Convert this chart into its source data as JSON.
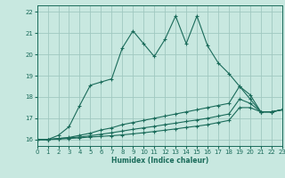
{
  "xlabel": "Humidex (Indice chaleur)",
  "bg_color": "#c8e8e0",
  "grid_color": "#a0c8c0",
  "line_color": "#1a6b5a",
  "xlim": [
    0,
    23
  ],
  "ylim": [
    15.7,
    22.3
  ],
  "xticks": [
    0,
    1,
    2,
    3,
    4,
    5,
    6,
    7,
    8,
    9,
    10,
    11,
    12,
    13,
    14,
    15,
    16,
    17,
    18,
    19,
    20,
    21,
    22,
    23
  ],
  "yticks": [
    16,
    17,
    18,
    19,
    20,
    21,
    22
  ],
  "line1_x": [
    0,
    1,
    2,
    3,
    4,
    5,
    6,
    7,
    8,
    9,
    10,
    11,
    12,
    13,
    14,
    15,
    16,
    17,
    18,
    19,
    20,
    21,
    22,
    23
  ],
  "line1_y": [
    16.0,
    16.0,
    16.2,
    16.6,
    17.6,
    18.55,
    18.7,
    18.85,
    20.3,
    21.1,
    20.5,
    19.9,
    20.7,
    21.8,
    20.5,
    21.8,
    20.4,
    19.6,
    19.1,
    18.5,
    18.1,
    17.3,
    17.3,
    17.4
  ],
  "line2_x": [
    0,
    1,
    2,
    3,
    4,
    5,
    6,
    7,
    8,
    9,
    10,
    11,
    12,
    13,
    14,
    15,
    16,
    17,
    18,
    19,
    20,
    21,
    22,
    23
  ],
  "line2_y": [
    16.0,
    16.0,
    16.05,
    16.1,
    16.2,
    16.3,
    16.45,
    16.55,
    16.7,
    16.8,
    16.9,
    17.0,
    17.1,
    17.2,
    17.3,
    17.4,
    17.5,
    17.6,
    17.7,
    18.5,
    17.9,
    17.3,
    17.3,
    17.4
  ],
  "line3_x": [
    0,
    1,
    2,
    3,
    4,
    5,
    6,
    7,
    8,
    9,
    10,
    11,
    12,
    13,
    14,
    15,
    16,
    17,
    18,
    19,
    20,
    21,
    22,
    23
  ],
  "line3_y": [
    16.0,
    16.0,
    16.05,
    16.08,
    16.12,
    16.18,
    16.25,
    16.32,
    16.4,
    16.48,
    16.55,
    16.62,
    16.7,
    16.77,
    16.85,
    16.92,
    17.0,
    17.1,
    17.2,
    17.9,
    17.7,
    17.3,
    17.3,
    17.4
  ],
  "line4_x": [
    0,
    1,
    2,
    3,
    4,
    5,
    6,
    7,
    8,
    9,
    10,
    11,
    12,
    13,
    14,
    15,
    16,
    17,
    18,
    19,
    20,
    21,
    22,
    23
  ],
  "line4_y": [
    16.0,
    16.0,
    16.02,
    16.05,
    16.08,
    16.12,
    16.15,
    16.18,
    16.22,
    16.27,
    16.32,
    16.38,
    16.44,
    16.5,
    16.57,
    16.63,
    16.7,
    16.8,
    16.9,
    17.5,
    17.5,
    17.3,
    17.3,
    17.4
  ]
}
